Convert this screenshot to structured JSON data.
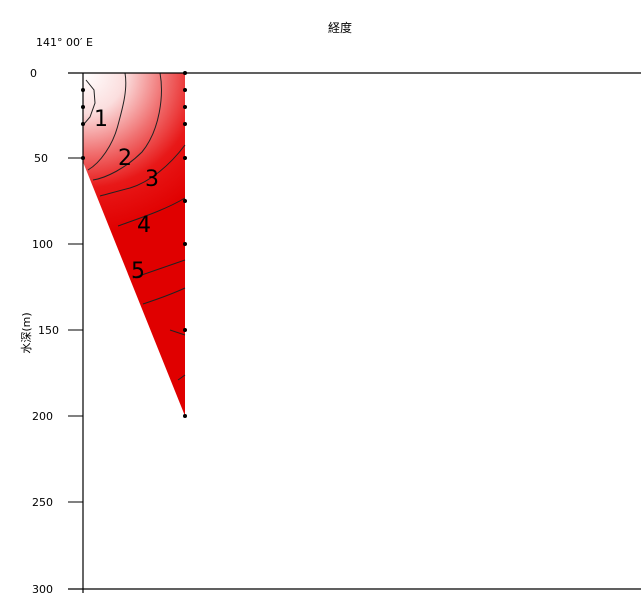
{
  "chart_data": {
    "type": "contour",
    "title": "経度",
    "x_tick_label": "141° 00′ E",
    "ylabel": "水深(m)",
    "y_ticks": [
      0,
      50,
      100,
      150,
      200,
      250,
      300
    ],
    "ylim": [
      0,
      300
    ],
    "contour_labels": [
      "1",
      "2",
      "3",
      "4",
      "5"
    ],
    "gradient_colors": [
      "#ffffff",
      "#f39a9a",
      "#e81818",
      "#e00000"
    ],
    "sample_points_left_column_depths": [
      10,
      20,
      30,
      50
    ],
    "sample_points_right_column_depths": [
      0,
      10,
      20,
      30,
      50,
      75,
      100,
      150,
      200
    ]
  }
}
